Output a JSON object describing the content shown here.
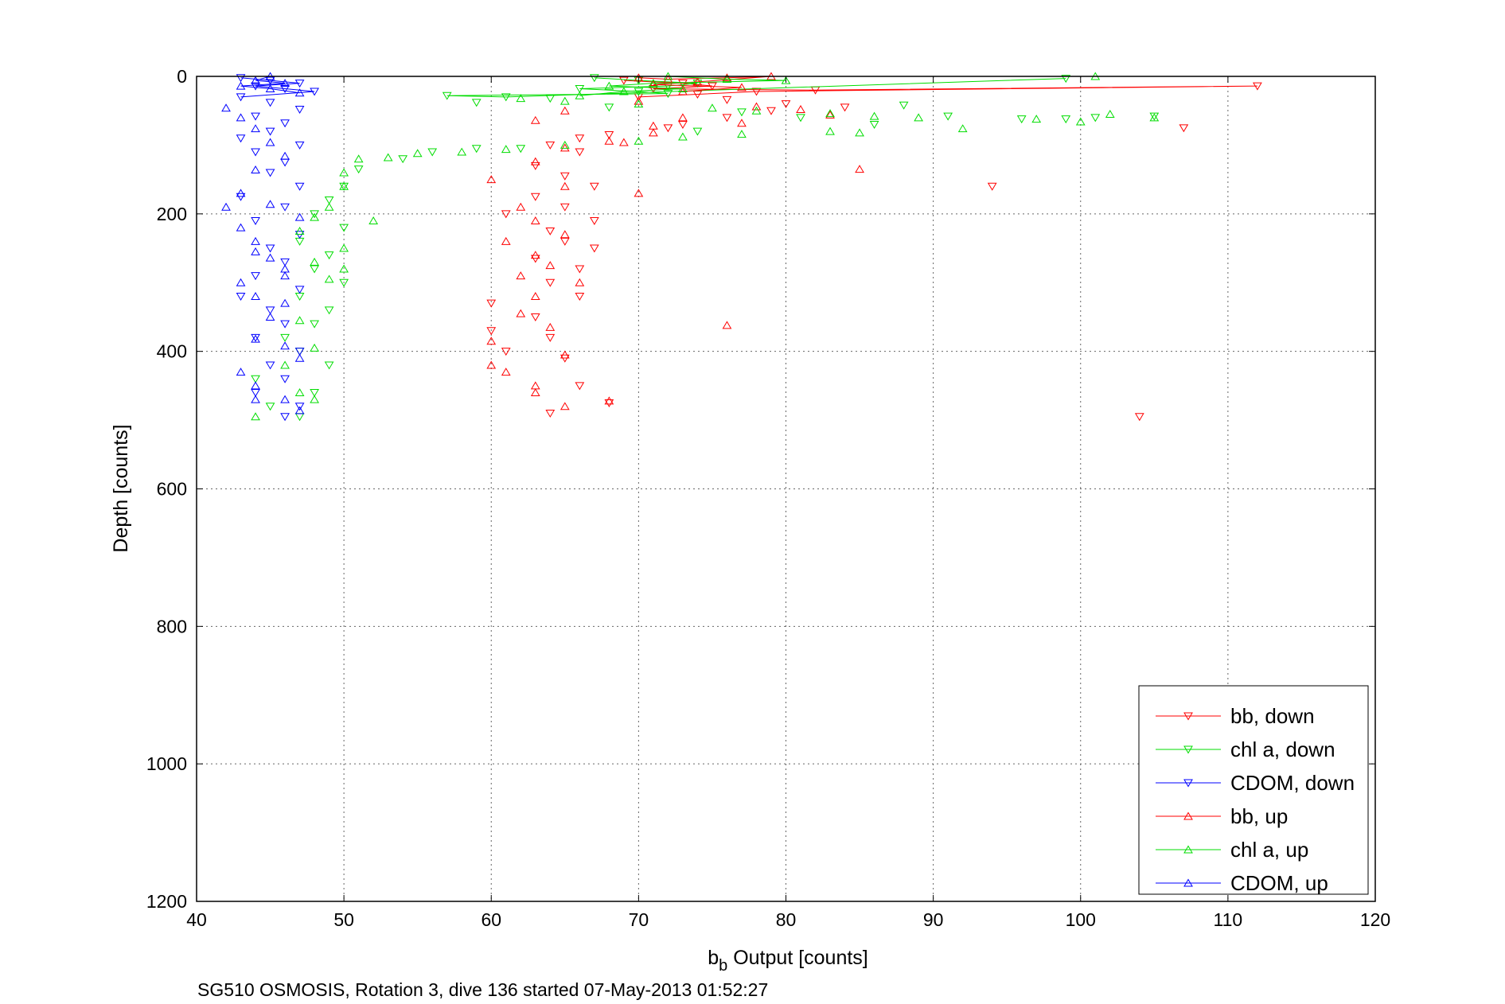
{
  "caption": "SG510 OSMOSIS, Rotation 3, dive 136 started 07-May-2013 01:52:27",
  "chart_data": {
    "type": "scatter",
    "xlabel_main": "b",
    "xlabel_sub": "b",
    "xlabel_rest": " Output [counts]",
    "ylabel": "Depth [counts]",
    "xlim": [
      40,
      120
    ],
    "ylim": [
      0,
      1200
    ],
    "y_reversed": true,
    "x_ticks": [
      40,
      50,
      60,
      70,
      80,
      90,
      100,
      110,
      120
    ],
    "y_ticks": [
      0,
      200,
      400,
      600,
      800,
      1000,
      1200
    ],
    "x_tick_labels": [
      "40",
      "50",
      "60",
      "70",
      "80",
      "90",
      "100",
      "110",
      "120"
    ],
    "y_tick_labels": [
      "0",
      "200",
      "400",
      "600",
      "800",
      "1000",
      "1200"
    ],
    "grid": true,
    "legend_position": "bottom-right",
    "series": [
      {
        "name": "bb, down",
        "color": "#ff0000",
        "marker": "triangle-down",
        "points": [
          [
            69,
            6
          ],
          [
            73,
            10
          ],
          [
            75,
            14
          ],
          [
            71,
            18
          ],
          [
            82,
            20
          ],
          [
            112,
            14
          ],
          [
            78,
            22
          ],
          [
            74,
            26
          ],
          [
            70,
            30
          ],
          [
            76,
            34
          ],
          [
            80,
            40
          ],
          [
            84,
            45
          ],
          [
            79,
            50
          ],
          [
            76,
            60
          ],
          [
            73,
            70
          ],
          [
            72,
            75
          ],
          [
            68,
            85
          ],
          [
            66,
            90
          ],
          [
            64,
            100
          ],
          [
            66,
            110
          ],
          [
            63,
            130
          ],
          [
            65,
            145
          ],
          [
            67,
            160
          ],
          [
            63,
            175
          ],
          [
            65,
            190
          ],
          [
            61,
            200
          ],
          [
            67,
            210
          ],
          [
            64,
            225
          ],
          [
            65,
            240
          ],
          [
            67,
            250
          ],
          [
            63,
            265
          ],
          [
            66,
            280
          ],
          [
            64,
            300
          ],
          [
            66,
            320
          ],
          [
            60,
            330
          ],
          [
            63,
            350
          ],
          [
            60,
            370
          ],
          [
            64,
            380
          ],
          [
            61,
            400
          ],
          [
            65,
            410
          ],
          [
            66,
            450
          ],
          [
            68,
            475
          ],
          [
            64,
            490
          ],
          [
            94,
            160
          ],
          [
            104,
            495
          ],
          [
            107,
            75
          ]
        ]
      },
      {
        "name": "chl a, down",
        "color": "#00dd00",
        "marker": "triangle-down",
        "points": [
          [
            67,
            2
          ],
          [
            70,
            6
          ],
          [
            74,
            10
          ],
          [
            72,
            14
          ],
          [
            66,
            18
          ],
          [
            70,
            22
          ],
          [
            72,
            25
          ],
          [
            57,
            28
          ],
          [
            61,
            30
          ],
          [
            64,
            32
          ],
          [
            59,
            38
          ],
          [
            68,
            45
          ],
          [
            77,
            52
          ],
          [
            81,
            60
          ],
          [
            86,
            70
          ],
          [
            88,
            42
          ],
          [
            91,
            58
          ],
          [
            96,
            62
          ],
          [
            99,
            62
          ],
          [
            101,
            60
          ],
          [
            105,
            58
          ],
          [
            99,
            3
          ],
          [
            74,
            80
          ],
          [
            62,
            105
          ],
          [
            50,
            160
          ],
          [
            49,
            180
          ],
          [
            48,
            200
          ],
          [
            50,
            220
          ],
          [
            47,
            240
          ],
          [
            49,
            260
          ],
          [
            48,
            280
          ],
          [
            50,
            300
          ],
          [
            47,
            320
          ],
          [
            49,
            340
          ],
          [
            48,
            360
          ],
          [
            46,
            380
          ],
          [
            47,
            400
          ],
          [
            49,
            420
          ],
          [
            44,
            440
          ],
          [
            48,
            460
          ],
          [
            45,
            480
          ],
          [
            47,
            495
          ],
          [
            56,
            110
          ],
          [
            59,
            105
          ],
          [
            54,
            120
          ],
          [
            51,
            135
          ]
        ]
      },
      {
        "name": "CDOM, down",
        "color": "#0000ff",
        "marker": "triangle-down",
        "points": [
          [
            43,
            2
          ],
          [
            45,
            6
          ],
          [
            47,
            10
          ],
          [
            44,
            14
          ],
          [
            46,
            18
          ],
          [
            48,
            22
          ],
          [
            43,
            30
          ],
          [
            45,
            38
          ],
          [
            47,
            48
          ],
          [
            44,
            58
          ],
          [
            46,
            68
          ],
          [
            45,
            80
          ],
          [
            43,
            90
          ],
          [
            47,
            100
          ],
          [
            44,
            110
          ],
          [
            46,
            125
          ],
          [
            45,
            140
          ],
          [
            47,
            160
          ],
          [
            43,
            175
          ],
          [
            46,
            190
          ],
          [
            44,
            210
          ],
          [
            47,
            230
          ],
          [
            45,
            250
          ],
          [
            46,
            270
          ],
          [
            44,
            290
          ],
          [
            47,
            310
          ],
          [
            43,
            320
          ],
          [
            45,
            340
          ],
          [
            46,
            360
          ],
          [
            44,
            380
          ],
          [
            47,
            400
          ],
          [
            45,
            420
          ],
          [
            46,
            440
          ],
          [
            44,
            460
          ],
          [
            47,
            480
          ],
          [
            46,
            495
          ]
        ]
      },
      {
        "name": "bb, up",
        "color": "#ff0000",
        "marker": "triangle-up",
        "points": [
          [
            70,
            2
          ],
          [
            72,
            4
          ],
          [
            76,
            2
          ],
          [
            79,
            0
          ],
          [
            74,
            8
          ],
          [
            71,
            12
          ],
          [
            77,
            16
          ],
          [
            73,
            22
          ],
          [
            70,
            36
          ],
          [
            65,
            50
          ],
          [
            63,
            64
          ],
          [
            77,
            68
          ],
          [
            71,
            82
          ],
          [
            69,
            96
          ],
          [
            65,
            104
          ],
          [
            63,
            124
          ],
          [
            60,
            150
          ],
          [
            65,
            160
          ],
          [
            62,
            190
          ],
          [
            63,
            210
          ],
          [
            65,
            230
          ],
          [
            61,
            240
          ],
          [
            63,
            260
          ],
          [
            64,
            275
          ],
          [
            62,
            290
          ],
          [
            66,
            300
          ],
          [
            63,
            320
          ],
          [
            62,
            345
          ],
          [
            64,
            365
          ],
          [
            60,
            385
          ],
          [
            65,
            405
          ],
          [
            60,
            420
          ],
          [
            61,
            430
          ],
          [
            63,
            450
          ],
          [
            63,
            460
          ],
          [
            65,
            480
          ],
          [
            68,
            472
          ],
          [
            76,
            362
          ],
          [
            85,
            135
          ],
          [
            83,
            56
          ],
          [
            81,
            48
          ],
          [
            78,
            44
          ],
          [
            73,
            60
          ],
          [
            71,
            72
          ],
          [
            68,
            94
          ],
          [
            70,
            170
          ]
        ]
      },
      {
        "name": "chl a, up",
        "color": "#00dd00",
        "marker": "triangle-up",
        "points": [
          [
            101,
            0
          ],
          [
            72,
            0
          ],
          [
            76,
            4
          ],
          [
            80,
            6
          ],
          [
            71,
            10
          ],
          [
            68,
            14
          ],
          [
            73,
            18
          ],
          [
            69,
            22
          ],
          [
            66,
            28
          ],
          [
            62,
            32
          ],
          [
            65,
            36
          ],
          [
            70,
            40
          ],
          [
            75,
            46
          ],
          [
            78,
            50
          ],
          [
            83,
            54
          ],
          [
            86,
            58
          ],
          [
            89,
            60
          ],
          [
            92,
            76
          ],
          [
            97,
            62
          ],
          [
            100,
            66
          ],
          [
            102,
            55
          ],
          [
            105,
            60
          ],
          [
            83,
            80
          ],
          [
            77,
            84
          ],
          [
            73,
            88
          ],
          [
            70,
            94
          ],
          [
            65,
            100
          ],
          [
            61,
            106
          ],
          [
            58,
            110
          ],
          [
            55,
            112
          ],
          [
            53,
            118
          ],
          [
            51,
            120
          ],
          [
            50,
            140
          ],
          [
            50,
            160
          ],
          [
            49,
            190
          ],
          [
            48,
            205
          ],
          [
            47,
            225
          ],
          [
            50,
            250
          ],
          [
            48,
            270
          ],
          [
            49,
            295
          ],
          [
            50,
            280
          ],
          [
            47,
            355
          ],
          [
            48,
            395
          ],
          [
            46,
            420
          ],
          [
            47,
            460
          ],
          [
            48,
            470
          ],
          [
            44,
            495
          ],
          [
            52,
            210
          ],
          [
            85,
            82
          ]
        ]
      },
      {
        "name": "CDOM, up",
        "color": "#0000ff",
        "marker": "triangle-up",
        "points": [
          [
            45,
            0
          ],
          [
            44,
            6
          ],
          [
            46,
            10
          ],
          [
            43,
            14
          ],
          [
            45,
            18
          ],
          [
            47,
            24
          ],
          [
            42,
            46
          ],
          [
            43,
            60
          ],
          [
            44,
            76
          ],
          [
            45,
            96
          ],
          [
            46,
            116
          ],
          [
            44,
            136
          ],
          [
            42,
            190
          ],
          [
            43,
            170
          ],
          [
            45,
            186
          ],
          [
            47,
            205
          ],
          [
            43,
            220
          ],
          [
            44,
            240
          ],
          [
            45,
            264
          ],
          [
            46,
            280
          ],
          [
            43,
            300
          ],
          [
            44,
            320
          ],
          [
            46,
            330
          ],
          [
            45,
            350
          ],
          [
            44,
            382
          ],
          [
            46,
            392
          ],
          [
            47,
            410
          ],
          [
            43,
            430
          ],
          [
            44,
            450
          ],
          [
            46,
            470
          ],
          [
            47,
            486
          ],
          [
            44,
            470
          ],
          [
            46,
            290
          ],
          [
            44,
            255
          ]
        ]
      }
    ]
  }
}
